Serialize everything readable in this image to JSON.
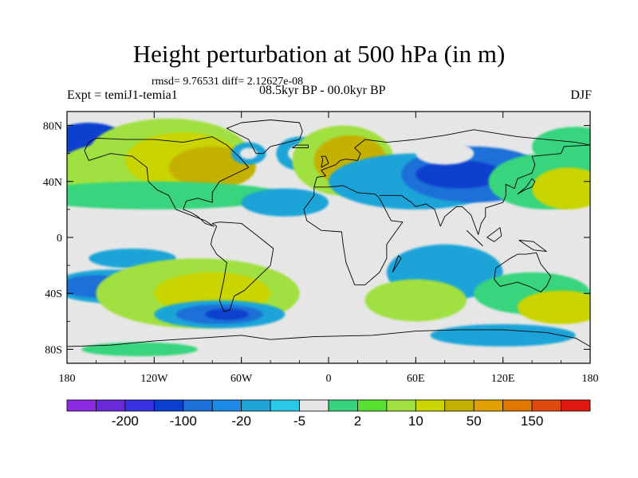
{
  "header": {
    "title": "Height perturbation at 500 hPa (in m)",
    "stats": "rmsd= 9.76531 diff= 2.12627e-08",
    "expt": "Expt = temiJ1-temia1",
    "period": "08.5kyr BP - 00.0kyr BP",
    "season": "DJF"
  },
  "map": {
    "projection": "cylindrical-equidistant",
    "lon_range": [
      -180,
      180
    ],
    "lat_range": [
      -90,
      90
    ],
    "x_ticks": [
      {
        "lon": -180,
        "label": "180"
      },
      {
        "lon": -120,
        "label": "120W"
      },
      {
        "lon": -60,
        "label": "60W"
      },
      {
        "lon": 0,
        "label": "0"
      },
      {
        "lon": 60,
        "label": "60E"
      },
      {
        "lon": 120,
        "label": "120E"
      },
      {
        "lon": 180,
        "label": "180"
      }
    ],
    "y_ticks": [
      {
        "lat": 80,
        "label": "80N"
      },
      {
        "lat": 40,
        "label": "40N"
      },
      {
        "lat": 0,
        "label": "0"
      },
      {
        "lat": -40,
        "label": "40S"
      },
      {
        "lat": -80,
        "label": "80S"
      }
    ],
    "background_level_color": "#e6e6e6",
    "blobs": [
      {
        "lon": -170,
        "lat": 55,
        "rlon": 45,
        "rlat": 22,
        "color": "#1fa4d8"
      },
      {
        "lon": -170,
        "lat": 58,
        "rlon": 25,
        "rlat": 14,
        "color": "#1e6fd8"
      },
      {
        "lon": -165,
        "lat": 70,
        "rlon": 25,
        "rlat": 12,
        "color": "#0b3fcf"
      },
      {
        "lon": -150,
        "lat": 45,
        "rlon": 40,
        "rlat": 22,
        "color": "#a0e040"
      },
      {
        "lon": -110,
        "lat": 60,
        "rlon": 55,
        "rlat": 25,
        "color": "#a0e040"
      },
      {
        "lon": -100,
        "lat": 55,
        "rlon": 40,
        "rlat": 20,
        "color": "#c9d400"
      },
      {
        "lon": -80,
        "lat": 50,
        "rlon": 30,
        "rlat": 15,
        "color": "#c4b000"
      },
      {
        "lon": -55,
        "lat": 60,
        "rlon": 12,
        "rlat": 8,
        "color": "#1fa4d8"
      },
      {
        "lon": -55,
        "lat": 60,
        "rlon": 6,
        "rlat": 4,
        "color": "#e6e6e6"
      },
      {
        "lon": -20,
        "lat": 60,
        "rlon": 16,
        "rlat": 12,
        "color": "#1fa4d8"
      },
      {
        "lon": -20,
        "lat": 60,
        "rlon": 8,
        "rlat": 6,
        "color": "#e6e6e6"
      },
      {
        "lon": 10,
        "lat": 55,
        "rlon": 35,
        "rlat": 25,
        "color": "#a0e040"
      },
      {
        "lon": 15,
        "lat": 55,
        "rlon": 25,
        "rlat": 18,
        "color": "#c4b000"
      },
      {
        "lon": -120,
        "lat": 30,
        "rlon": 90,
        "rlat": 10,
        "color": "#37d47e"
      },
      {
        "lon": -30,
        "lat": 25,
        "rlon": 30,
        "rlat": 10,
        "color": "#1fa4d8"
      },
      {
        "lon": 60,
        "lat": 40,
        "rlon": 60,
        "rlat": 20,
        "color": "#1fa4d8"
      },
      {
        "lon": 100,
        "lat": 45,
        "rlon": 50,
        "rlat": 20,
        "color": "#1e6fd8"
      },
      {
        "lon": 90,
        "lat": 45,
        "rlon": 30,
        "rlat": 10,
        "color": "#0b3fcf"
      },
      {
        "lon": 80,
        "lat": 60,
        "rlon": 20,
        "rlat": 8,
        "color": "#e6e6e6"
      },
      {
        "lon": 150,
        "lat": 40,
        "rlon": 40,
        "rlat": 20,
        "color": "#37d47e"
      },
      {
        "lon": 165,
        "lat": 35,
        "rlon": 25,
        "rlat": 15,
        "color": "#c9d400"
      },
      {
        "lon": 170,
        "lat": 65,
        "rlon": 30,
        "rlat": 14,
        "color": "#37d47e"
      },
      {
        "lon": -135,
        "lat": -15,
        "rlon": 30,
        "rlat": 7,
        "color": "#1fa4d8"
      },
      {
        "lon": -150,
        "lat": -35,
        "rlon": 40,
        "rlat": 12,
        "color": "#1fa4d8"
      },
      {
        "lon": -160,
        "lat": -35,
        "rlon": 25,
        "rlat": 8,
        "color": "#1e6fd8"
      },
      {
        "lon": -90,
        "lat": -40,
        "rlon": 70,
        "rlat": 25,
        "color": "#a0e040"
      },
      {
        "lon": -80,
        "lat": -40,
        "rlon": 40,
        "rlat": 15,
        "color": "#c9d400"
      },
      {
        "lon": -75,
        "lat": -55,
        "rlon": 45,
        "rlat": 10,
        "color": "#1fa4d8"
      },
      {
        "lon": -75,
        "lat": -55,
        "rlon": 30,
        "rlat": 7,
        "color": "#1e6fd8"
      },
      {
        "lon": -70,
        "lat": -55,
        "rlon": 15,
        "rlat": 4,
        "color": "#0b3fcf"
      },
      {
        "lon": 80,
        "lat": -25,
        "rlon": 40,
        "rlat": 20,
        "color": "#1fa4d8"
      },
      {
        "lon": 60,
        "lat": -45,
        "rlon": 35,
        "rlat": 15,
        "color": "#a0e040"
      },
      {
        "lon": 140,
        "lat": -40,
        "rlon": 40,
        "rlat": 15,
        "color": "#37d47e"
      },
      {
        "lon": 160,
        "lat": -50,
        "rlon": 30,
        "rlat": 12,
        "color": "#c9d400"
      },
      {
        "lon": 120,
        "lat": -70,
        "rlon": 50,
        "rlat": 8,
        "color": "#1fa4d8"
      },
      {
        "lon": -130,
        "lat": -80,
        "rlon": 40,
        "rlat": 5,
        "color": "#37d47e"
      }
    ],
    "coast_polylines": [
      [
        [
          -165,
          68
        ],
        [
          -160,
          71
        ],
        [
          -140,
          70
        ],
        [
          -120,
          70
        ],
        [
          -100,
          68
        ],
        [
          -90,
          70
        ],
        [
          -80,
          72
        ],
        [
          -70,
          66
        ],
        [
          -60,
          56
        ],
        [
          -55,
          50
        ],
        [
          -65,
          45
        ],
        [
          -75,
          40
        ],
        [
          -80,
          32
        ],
        [
          -80,
          25
        ],
        [
          -90,
          28
        ],
        [
          -98,
          26
        ],
        [
          -100,
          20
        ],
        [
          -95,
          18
        ],
        [
          -90,
          15
        ],
        [
          -85,
          10
        ],
        [
          -79,
          8
        ],
        [
          -85,
          12
        ],
        [
          -105,
          20
        ],
        [
          -110,
          30
        ],
        [
          -118,
          34
        ],
        [
          -124,
          40
        ],
        [
          -125,
          50
        ],
        [
          -135,
          58
        ],
        [
          -150,
          60
        ],
        [
          -165,
          55
        ],
        [
          -168,
          62
        ],
        [
          -165,
          68
        ]
      ],
      [
        [
          -50,
          60
        ],
        [
          -45,
          60
        ],
        [
          -40,
          65
        ],
        [
          -20,
          70
        ],
        [
          -18,
          76
        ],
        [
          -20,
          82
        ],
        [
          -40,
          84
        ],
        [
          -60,
          82
        ],
        [
          -70,
          78
        ],
        [
          -55,
          70
        ],
        [
          -50,
          60
        ]
      ],
      [
        [
          -80,
          10
        ],
        [
          -75,
          11
        ],
        [
          -60,
          10
        ],
        [
          -50,
          2
        ],
        [
          -38,
          -8
        ],
        [
          -40,
          -20
        ],
        [
          -48,
          -28
        ],
        [
          -58,
          -38
        ],
        [
          -65,
          -42
        ],
        [
          -68,
          -52
        ],
        [
          -72,
          -53
        ],
        [
          -75,
          -45
        ],
        [
          -72,
          -30
        ],
        [
          -70,
          -18
        ],
        [
          -77,
          -12
        ],
        [
          -81,
          -5
        ],
        [
          -80,
          0
        ],
        [
          -77,
          8
        ],
        [
          -80,
          10
        ]
      ],
      [
        [
          -10,
          36
        ],
        [
          0,
          36
        ],
        [
          10,
          37
        ],
        [
          20,
          32
        ],
        [
          32,
          31
        ],
        [
          35,
          28
        ],
        [
          43,
          12
        ],
        [
          51,
          11
        ],
        [
          40,
          -5
        ],
        [
          40,
          -15
        ],
        [
          35,
          -25
        ],
        [
          25,
          -34
        ],
        [
          18,
          -34
        ],
        [
          12,
          -18
        ],
        [
          10,
          -5
        ],
        [
          9,
          4
        ],
        [
          -5,
          5
        ],
        [
          -15,
          12
        ],
        [
          -17,
          20
        ],
        [
          -10,
          30
        ],
        [
          -10,
          36
        ]
      ],
      [
        [
          -10,
          36
        ],
        [
          -8,
          43
        ],
        [
          -2,
          44
        ],
        [
          -5,
          48
        ],
        [
          5,
          52
        ],
        [
          8,
          55
        ],
        [
          12,
          56
        ],
        [
          20,
          55
        ],
        [
          22,
          60
        ],
        [
          18,
          64
        ],
        [
          25,
          70
        ],
        [
          40,
          68
        ],
        [
          60,
          70
        ],
        [
          80,
          73
        ],
        [
          100,
          77
        ],
        [
          130,
          72
        ],
        [
          150,
          70
        ],
        [
          170,
          68
        ],
        [
          180,
          66
        ]
      ],
      [
        [
          35,
          30
        ],
        [
          50,
          30
        ],
        [
          57,
          25
        ],
        [
          60,
          22
        ],
        [
          67,
          24
        ],
        [
          73,
          20
        ],
        [
          77,
          8
        ],
        [
          80,
          15
        ],
        [
          88,
          22
        ],
        [
          92,
          22
        ],
        [
          98,
          16
        ],
        [
          103,
          2
        ],
        [
          105,
          10
        ],
        [
          108,
          15
        ],
        [
          108,
          21
        ],
        [
          120,
          25
        ],
        [
          122,
          30
        ],
        [
          122,
          38
        ],
        [
          128,
          35
        ],
        [
          130,
          42
        ],
        [
          140,
          46
        ],
        [
          142,
          52
        ],
        [
          140,
          58
        ],
        [
          160,
          60
        ],
        [
          162,
          65
        ],
        [
          180,
          66
        ]
      ],
      [
        [
          115,
          -22
        ],
        [
          114,
          -30
        ],
        [
          118,
          -35
        ],
        [
          130,
          -32
        ],
        [
          138,
          -35
        ],
        [
          146,
          -39
        ],
        [
          150,
          -35
        ],
        [
          153,
          -28
        ],
        [
          146,
          -19
        ],
        [
          143,
          -11
        ],
        [
          136,
          -12
        ],
        [
          130,
          -12
        ],
        [
          125,
          -15
        ],
        [
          115,
          -22
        ]
      ],
      [
        [
          -180,
          -78
        ],
        [
          -150,
          -77
        ],
        [
          -120,
          -74
        ],
        [
          -90,
          -72
        ],
        [
          -60,
          -70
        ],
        [
          -40,
          -73
        ],
        [
          -10,
          -71
        ],
        [
          30,
          -70
        ],
        [
          60,
          -67
        ],
        [
          90,
          -66
        ],
        [
          120,
          -66
        ],
        [
          150,
          -68
        ],
        [
          170,
          -72
        ],
        [
          180,
          -78
        ]
      ],
      [
        [
          -5,
          50
        ],
        [
          -4,
          56
        ],
        [
          -5,
          58
        ],
        [
          -2,
          58
        ],
        [
          0,
          53
        ],
        [
          -5,
          50
        ]
      ],
      [
        [
          130,
          31
        ],
        [
          135,
          34
        ],
        [
          140,
          36
        ],
        [
          142,
          40
        ],
        [
          140,
          42
        ],
        [
          136,
          36
        ],
        [
          130,
          31
        ]
      ],
      [
        [
          -25,
          64
        ],
        [
          -14,
          64
        ],
        [
          -14,
          66
        ],
        [
          -22,
          66
        ],
        [
          -25,
          64
        ]
      ],
      [
        [
          95,
          5
        ],
        [
          105,
          -5
        ],
        [
          106,
          -6
        ],
        [
          98,
          2
        ],
        [
          95,
          5
        ]
      ],
      [
        [
          109,
          0
        ],
        [
          118,
          7
        ],
        [
          119,
          1
        ],
        [
          114,
          -3
        ],
        [
          109,
          0
        ]
      ],
      [
        [
          131,
          -2
        ],
        [
          141,
          -3
        ],
        [
          150,
          -10
        ],
        [
          141,
          -9
        ],
        [
          131,
          -2
        ]
      ],
      [
        [
          44,
          -25
        ],
        [
          50,
          -15
        ],
        [
          48,
          -13
        ],
        [
          44,
          -25
        ]
      ]
    ]
  },
  "colorbar": {
    "colors": [
      "#8a2be2",
      "#6a28d8",
      "#3a32e0",
      "#0b3fcf",
      "#1e6fd8",
      "#1e8ae8",
      "#1fa4d8",
      "#2ac8e8",
      "#e6e6e6",
      "#37d47e",
      "#58e030",
      "#a0e040",
      "#c9d400",
      "#c4b000",
      "#e0a000",
      "#e07800",
      "#e04a10",
      "#e01a10"
    ],
    "labels": [
      {
        "after_box": 1,
        "text": "-200"
      },
      {
        "after_box": 3,
        "text": "-100"
      },
      {
        "after_box": 5,
        "text": "-20"
      },
      {
        "after_box": 7,
        "text": "-5"
      },
      {
        "after_box": 9,
        "text": "2"
      },
      {
        "after_box": 11,
        "text": "10"
      },
      {
        "after_box": 13,
        "text": "50"
      },
      {
        "after_box": 15,
        "text": "150"
      }
    ]
  }
}
